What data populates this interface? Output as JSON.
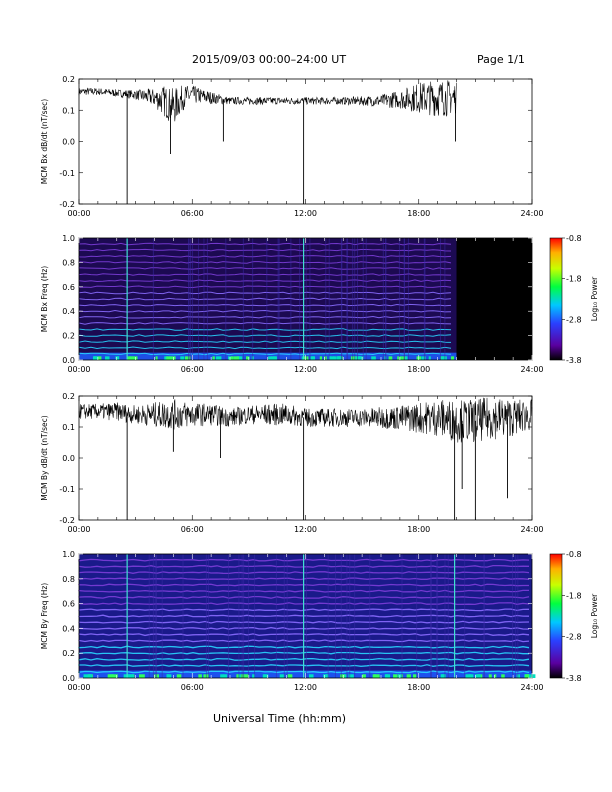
{
  "header": {
    "title": "2015/09/03  00:00–24:00 UT",
    "page": "Page 1/1"
  },
  "footer": {
    "xlabel": "Universal Time (hh:mm)"
  },
  "colors": {
    "trace": "#000000",
    "spectrogram_background": "#000000",
    "colorbar": [
      "#000000",
      "#5a00a0",
      "#2a40ff",
      "#00c8ff",
      "#00ff40",
      "#c8ff00",
      "#ffb000",
      "#ff0000"
    ]
  },
  "chart_data": [
    {
      "type": "line",
      "ylabel": "MCM Bx dB/dt (nT/sec)",
      "xlim": [
        0,
        24
      ],
      "ylim": [
        -0.2,
        0.2
      ],
      "xticks": [
        "00:00",
        "06:00",
        "12:00",
        "18:00",
        "24:00"
      ],
      "yticks": [
        "-0.2",
        "-0.1",
        "0.0",
        "0.1",
        "0.2"
      ],
      "data_end_hour": 20.0,
      "series": [
        {
          "x": [
            0,
            1,
            2,
            3,
            4,
            4.5,
            5,
            5.5,
            6,
            7,
            8,
            9,
            10,
            11,
            12,
            13,
            14,
            15,
            16,
            17,
            18,
            19,
            19.5,
            20
          ],
          "y": [
            0.16,
            0.16,
            0.155,
            0.15,
            0.14,
            0.13,
            0.11,
            0.14,
            0.15,
            0.14,
            0.13,
            0.13,
            0.13,
            0.13,
            0.13,
            0.13,
            0.13,
            0.13,
            0.13,
            0.135,
            0.14,
            0.14,
            0.14,
            0.14
          ],
          "noise": [
            0.012,
            0.012,
            0.012,
            0.015,
            0.03,
            0.05,
            0.06,
            0.04,
            0.03,
            0.02,
            0.012,
            0.012,
            0.012,
            0.012,
            0.012,
            0.012,
            0.012,
            0.015,
            0.02,
            0.03,
            0.05,
            0.06,
            0.06,
            0.05
          ]
        }
      ],
      "spikes": [
        {
          "x": 2.55,
          "y": -0.2
        },
        {
          "x": 4.85,
          "y": -0.04
        },
        {
          "x": 7.65,
          "y": 0.0
        },
        {
          "x": 11.9,
          "y": -0.2
        },
        {
          "x": 19.95,
          "y": 0.0
        }
      ]
    },
    {
      "type": "heatmap",
      "ylabel": "MCM Bx Freq (Hz)",
      "xlim": [
        0,
        24
      ],
      "ylim": [
        0.0,
        1.0
      ],
      "xticks": [
        "00:00",
        "06:00",
        "12:00",
        "18:00",
        "24:00"
      ],
      "yticks": [
        "0.0",
        "0.2",
        "0.4",
        "0.6",
        "0.8",
        "1.0"
      ],
      "data_end_hour": 20.0,
      "colorbar": {
        "label": "Log₁₀ Power",
        "ticks": [
          "-0.8",
          "-1.8",
          "-2.8",
          "-3.8"
        ],
        "range": [
          -3.8,
          -0.8
        ]
      },
      "harmonics_hz": [
        0.05,
        0.1,
        0.15,
        0.2,
        0.25,
        0.3,
        0.35,
        0.4,
        0.45,
        0.5,
        0.55,
        0.6,
        0.65,
        0.7,
        0.75,
        0.8,
        0.85,
        0.9,
        0.95
      ],
      "bright_times": [
        2.55,
        11.9
      ]
    },
    {
      "type": "line",
      "ylabel": "MCM By dB/dt (nT/sec)",
      "xlim": [
        0,
        24
      ],
      "ylim": [
        -0.2,
        0.2
      ],
      "xticks": [
        "00:00",
        "06:00",
        "12:00",
        "18:00",
        "24:00"
      ],
      "yticks": [
        "-0.2",
        "-0.1",
        "0.0",
        "0.1",
        "0.2"
      ],
      "data_end_hour": 24.0,
      "series": [
        {
          "x": [
            0,
            1,
            2,
            3,
            4,
            5,
            6,
            7,
            8,
            9,
            10,
            11,
            12,
            13,
            14,
            15,
            16,
            17,
            18,
            19,
            20,
            21,
            22,
            23,
            24
          ],
          "y": [
            0.15,
            0.15,
            0.15,
            0.14,
            0.14,
            0.14,
            0.14,
            0.14,
            0.13,
            0.14,
            0.14,
            0.14,
            0.13,
            0.13,
            0.13,
            0.13,
            0.13,
            0.13,
            0.13,
            0.13,
            0.12,
            0.12,
            0.13,
            0.13,
            0.14
          ],
          "noise": [
            0.025,
            0.025,
            0.03,
            0.03,
            0.04,
            0.05,
            0.04,
            0.035,
            0.03,
            0.03,
            0.035,
            0.035,
            0.03,
            0.03,
            0.03,
            0.03,
            0.035,
            0.04,
            0.05,
            0.06,
            0.07,
            0.07,
            0.07,
            0.06,
            0.05
          ]
        }
      ],
      "spikes": [
        {
          "x": 2.55,
          "y": -0.2
        },
        {
          "x": 5.0,
          "y": 0.02
        },
        {
          "x": 7.5,
          "y": 0.0
        },
        {
          "x": 11.9,
          "y": -0.2
        },
        {
          "x": 19.9,
          "y": -0.2
        },
        {
          "x": 20.3,
          "y": -0.1
        },
        {
          "x": 21.0,
          "y": -0.2
        },
        {
          "x": 22.7,
          "y": -0.13
        }
      ]
    },
    {
      "type": "heatmap",
      "ylabel": "MCM By Freq (Hz)",
      "xlim": [
        0,
        24
      ],
      "ylim": [
        0.0,
        1.0
      ],
      "xticks": [
        "00:00",
        "06:00",
        "12:00",
        "18:00",
        "24:00"
      ],
      "yticks": [
        "0.0",
        "0.2",
        "0.4",
        "0.6",
        "0.8",
        "1.0"
      ],
      "data_end_hour": 24.0,
      "colorbar": {
        "label": "Log₁₀ Power",
        "ticks": [
          "-0.8",
          "-1.8",
          "-2.8",
          "-3.8"
        ],
        "range": [
          -3.8,
          -0.8
        ]
      },
      "harmonics_hz": [
        0.05,
        0.1,
        0.15,
        0.2,
        0.25,
        0.3,
        0.35,
        0.4,
        0.45,
        0.5,
        0.55,
        0.6,
        0.65,
        0.7,
        0.75,
        0.8,
        0.85,
        0.9,
        0.95
      ],
      "bright_times": [
        2.55,
        11.9,
        19.9
      ]
    }
  ]
}
